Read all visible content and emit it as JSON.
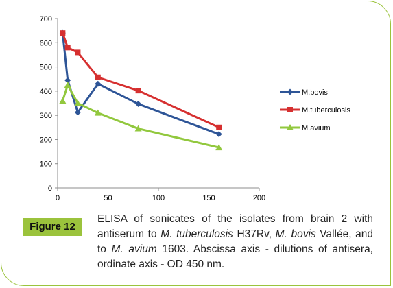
{
  "chart_data": {
    "type": "line",
    "title": "",
    "xlabel": "",
    "ylabel": "",
    "xlim": [
      0,
      200
    ],
    "ylim": [
      0,
      700
    ],
    "xticks": [
      0,
      50,
      100,
      150,
      200
    ],
    "yticks": [
      0,
      100,
      200,
      300,
      400,
      500,
      600,
      700
    ],
    "grid": false,
    "legend_position": "right",
    "series": [
      {
        "name": "M.bovis",
        "color": "#2e5597",
        "marker": "diamond",
        "x": [
          5,
          10,
          20,
          40,
          80,
          160
        ],
        "y": [
          640,
          445,
          312,
          430,
          347,
          222
        ]
      },
      {
        "name": "M.tuberculosis",
        "color": "#d63030",
        "marker": "square",
        "x": [
          5,
          10,
          20,
          40,
          80,
          160
        ],
        "y": [
          640,
          580,
          560,
          457,
          402,
          250
        ]
      },
      {
        "name": "M.avium",
        "color": "#92c83e",
        "marker": "triangle",
        "x": [
          5,
          10,
          20,
          40,
          80,
          160
        ],
        "y": [
          360,
          425,
          350,
          310,
          245,
          167
        ]
      }
    ]
  },
  "figure": {
    "label": "Figure 12",
    "caption_parts": [
      {
        "text": "ELISA of sonicates of the isolates from brain 2 with antiserum to ",
        "italic": false
      },
      {
        "text": "M. tuberculosis",
        "italic": true
      },
      {
        "text": " H37Rv, ",
        "italic": false
      },
      {
        "text": "M. bovis",
        "italic": true
      },
      {
        "text": " Vallée, and to ",
        "italic": false
      },
      {
        "text": "M. avium",
        "italic": true
      },
      {
        "text": " 1603. Abscissa axis - dilutions of antisera, ordinate axis - OD 450 nm.",
        "italic": false
      }
    ]
  },
  "colors": {
    "accent": "#9bc33c"
  }
}
